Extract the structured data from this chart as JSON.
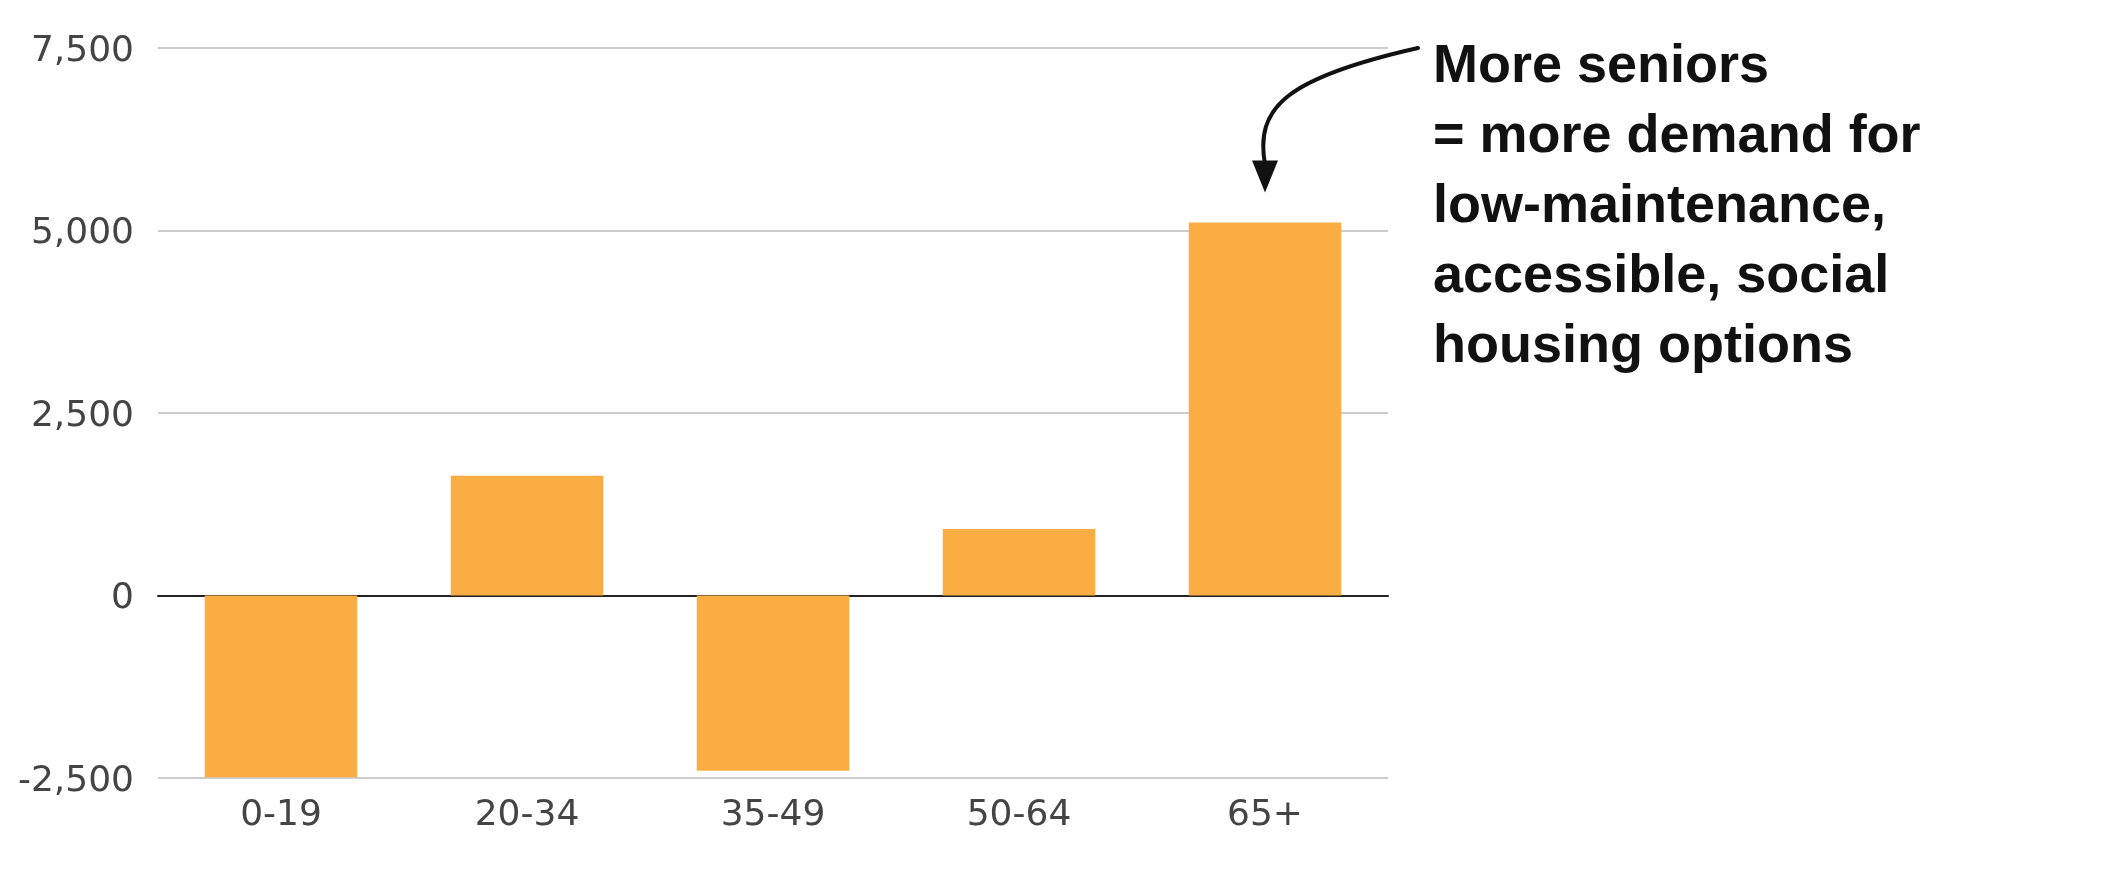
{
  "chart_data": {
    "type": "bar",
    "categories": [
      "0-19",
      "20-34",
      "35-49",
      "50-64",
      "65+"
    ],
    "values": [
      -2490,
      1640,
      -2400,
      910,
      5110
    ],
    "color": "#f9ad42",
    "ylim": [
      -2500,
      7500
    ],
    "yticks": [
      {
        "value": -2500,
        "label": "-2,500"
      },
      {
        "value": 0,
        "label": "0"
      },
      {
        "value": 2500,
        "label": "2,500"
      },
      {
        "value": 5000,
        "label": "5,000"
      },
      {
        "value": 7500,
        "label": "7,500"
      }
    ],
    "grid": "y",
    "annotations": [
      "More seniors\n= more demand for\nlow-maintenance,\naccessible, social\nhousing options"
    ]
  }
}
